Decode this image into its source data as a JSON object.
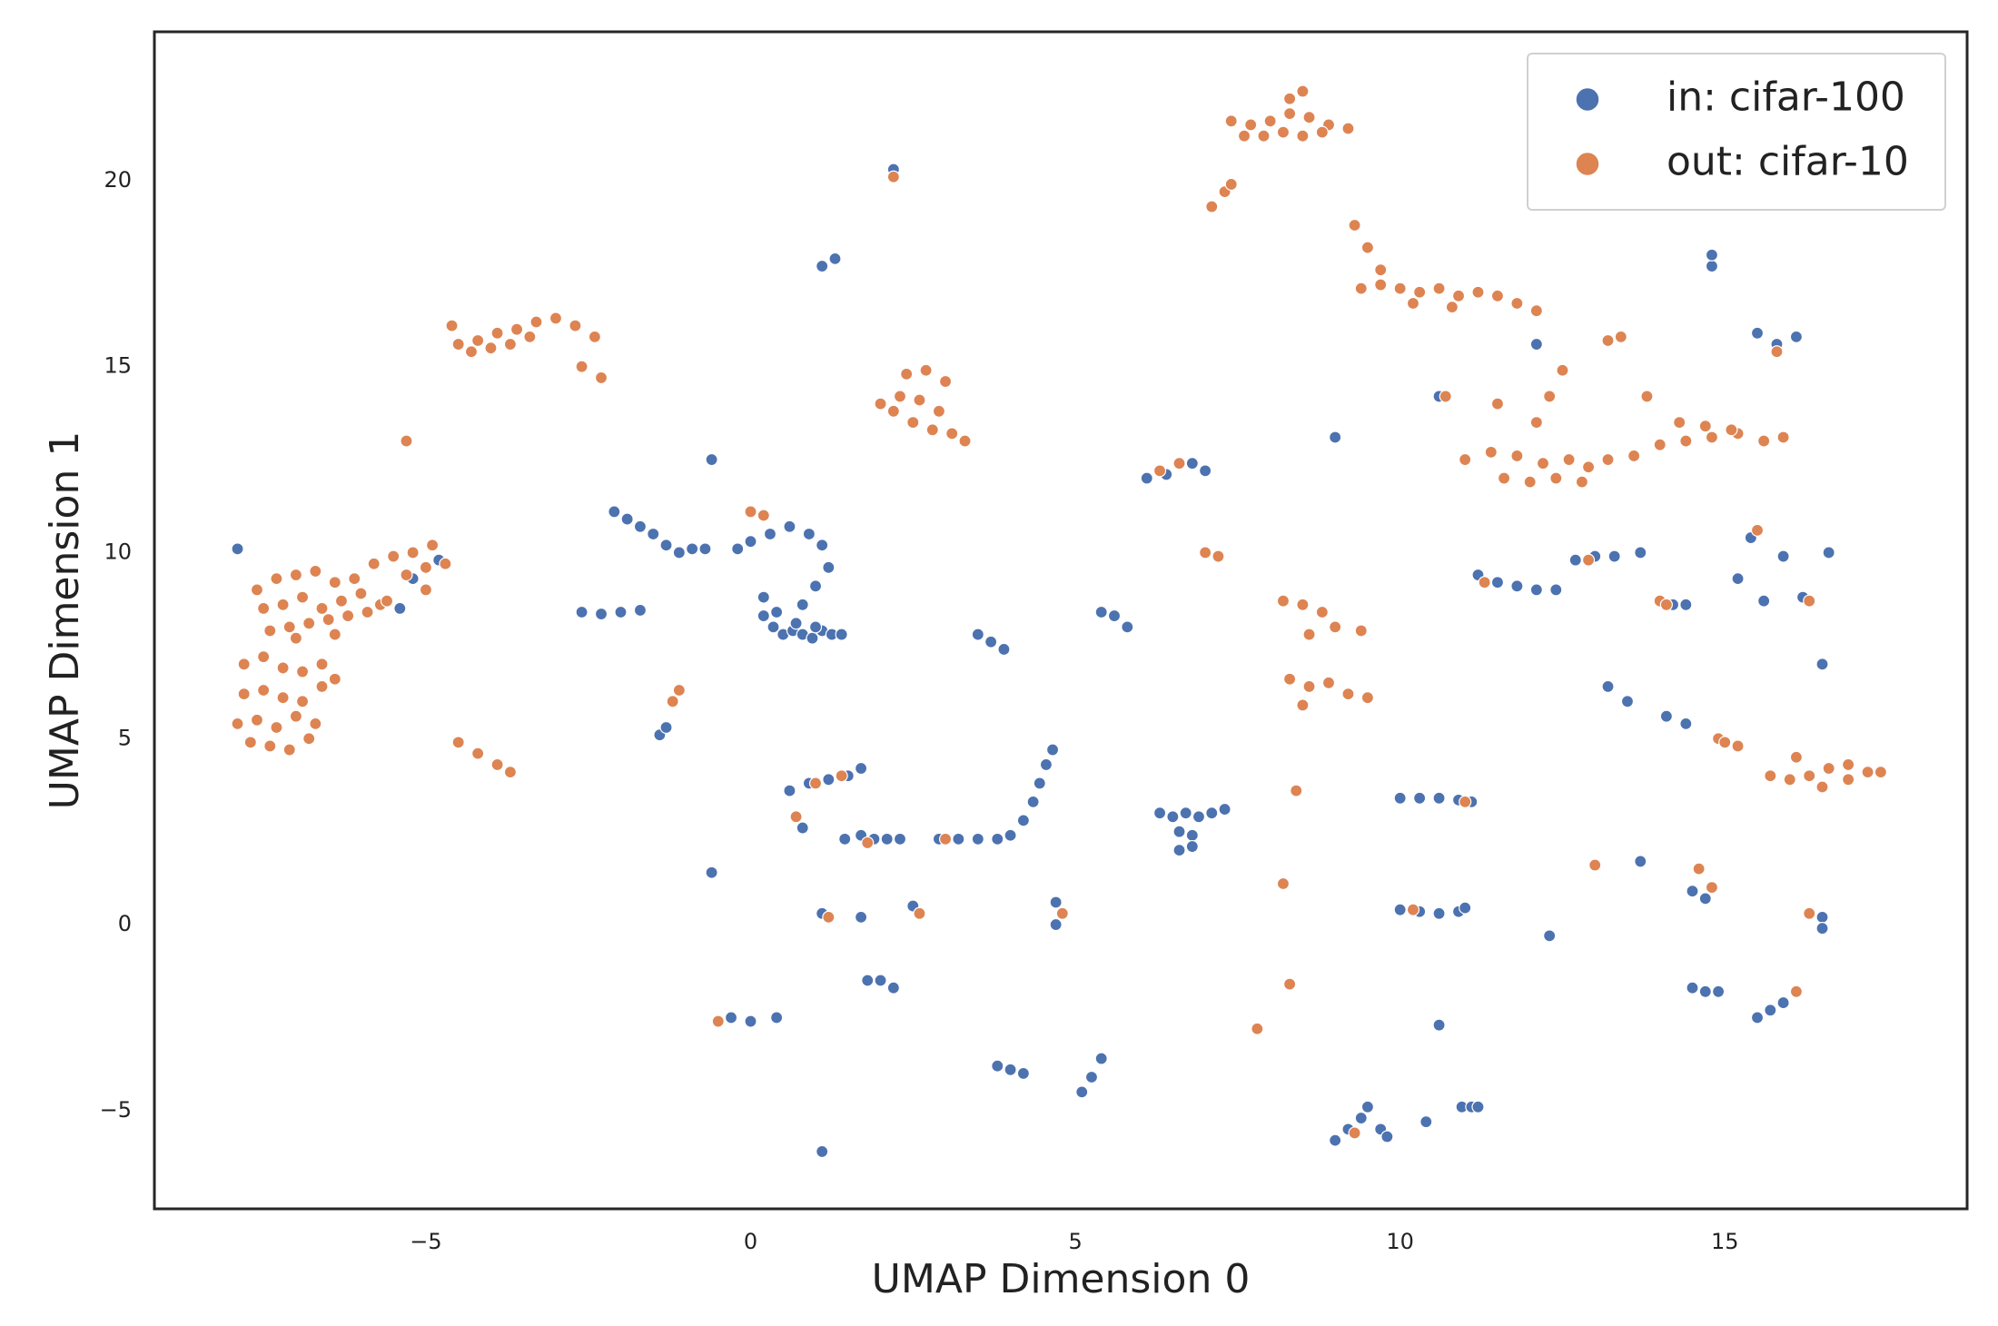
{
  "chart_data": {
    "type": "scatter",
    "xlabel": "UMAP Dimension 0",
    "ylabel": "UMAP Dimension 1",
    "xlim": [
      -9.18,
      18.73
    ],
    "ylim": [
      -7.64,
      24.0
    ],
    "xticks": [
      {
        "value": -5,
        "label": "−5"
      },
      0,
      5,
      10,
      15
    ],
    "yticks": [
      {
        "value": -5,
        "label": "−5"
      },
      0,
      5,
      10,
      15,
      20
    ],
    "grid": false,
    "legend": "upper right",
    "series": [
      {
        "name": "in: cifar-100",
        "color": "#4c72b0",
        "x": [
          0.2,
          0.35,
          0.5,
          0.65,
          0.8,
          0.95,
          1.1,
          1.25,
          1.4,
          0.4,
          0.7,
          1.0,
          0.0,
          0.3,
          0.6,
          0.9,
          1.1,
          1.2,
          1.0,
          0.8,
          -0.2,
          0.2,
          -2.1,
          -1.9,
          -1.7,
          -1.5,
          -1.3,
          -1.1,
          -0.9,
          -0.7,
          -7.9,
          -5.2,
          -5.0,
          -5.4,
          -4.8,
          -2.6,
          -2.3,
          -2.0,
          -1.7,
          -1.4,
          -1.3,
          0.6,
          0.9,
          1.2,
          1.5,
          1.7,
          0.8,
          1.45,
          1.7,
          1.9,
          2.1,
          2.3,
          2.9,
          3.2,
          3.5,
          3.8,
          4.0,
          4.2,
          4.35,
          4.45,
          4.55,
          4.65,
          6.3,
          6.5,
          6.7,
          6.9,
          7.1,
          7.3,
          6.6,
          6.8,
          6.6,
          6.8,
          3.5,
          3.7,
          3.9,
          5.4,
          5.6,
          5.8,
          6.1,
          6.4,
          6.8,
          7.0,
          1.1,
          1.3,
          2.2,
          -0.6,
          9.0,
          -0.6,
          1.1,
          1.7,
          2.5,
          4.7,
          4.7,
          1.8,
          2.0,
          2.2,
          -0.3,
          0.0,
          0.4,
          1.1,
          3.8,
          4.0,
          4.2,
          5.1,
          5.25,
          5.4,
          10.6,
          9.0,
          9.2,
          9.4,
          9.5,
          9.7,
          9.8,
          10.4,
          10.95,
          11.1,
          11.2,
          10.0,
          10.3,
          10.6,
          10.9,
          11.1,
          10.0,
          10.3,
          10.6,
          10.9,
          11.0,
          12.3,
          15.5,
          15.7,
          15.9,
          14.5,
          14.7,
          14.9,
          16.5,
          16.5,
          14.5,
          14.7,
          13.7,
          13.2,
          13.5,
          14.1,
          14.4,
          16.5,
          11.2,
          11.5,
          11.8,
          12.1,
          12.4,
          12.7,
          13.0,
          13.3,
          13.7,
          14.2,
          14.4,
          15.2,
          15.4,
          15.6,
          15.9,
          16.2,
          15.5,
          15.8,
          16.1,
          14.8,
          14.8,
          12.1,
          10.6,
          16.6
        ],
        "values": [
          8.3,
          8.0,
          7.8,
          7.9,
          7.8,
          7.7,
          7.9,
          7.8,
          7.8,
          8.4,
          8.1,
          8.0,
          10.3,
          10.5,
          10.7,
          10.5,
          10.2,
          9.6,
          9.1,
          8.6,
          10.1,
          8.8,
          11.1,
          10.9,
          10.7,
          10.5,
          10.2,
          10.0,
          10.1,
          10.1,
          10.1,
          9.3,
          9.0,
          8.5,
          9.8,
          8.4,
          8.35,
          8.4,
          8.45,
          5.1,
          5.3,
          3.6,
          3.8,
          3.9,
          4.0,
          4.2,
          2.6,
          2.3,
          2.4,
          2.3,
          2.3,
          2.3,
          2.3,
          2.3,
          2.3,
          2.3,
          2.4,
          2.8,
          3.3,
          3.8,
          4.3,
          4.7,
          3.0,
          2.9,
          3.0,
          2.9,
          3.0,
          3.1,
          2.5,
          2.4,
          2.0,
          2.1,
          7.8,
          7.6,
          7.4,
          8.4,
          8.3,
          8.0,
          12.0,
          12.1,
          12.4,
          12.2,
          17.7,
          17.9,
          20.3,
          12.5,
          13.1,
          1.4,
          0.3,
          0.2,
          0.5,
          0.6,
          0.0,
          -1.5,
          -1.5,
          -1.7,
          -2.5,
          -2.6,
          -2.5,
          -6.1,
          -3.8,
          -3.9,
          -4.0,
          -4.5,
          -4.1,
          -3.6,
          -2.7,
          -5.8,
          -5.5,
          -5.2,
          -4.9,
          -5.5,
          -5.7,
          -5.3,
          -4.9,
          -4.9,
          -4.9,
          3.4,
          3.4,
          3.4,
          3.35,
          3.3,
          0.4,
          0.35,
          0.3,
          0.35,
          0.45,
          -0.3,
          -2.5,
          -2.3,
          -2.1,
          -1.7,
          -1.8,
          -1.8,
          0.2,
          -0.1,
          0.9,
          0.7,
          1.7,
          6.4,
          6.0,
          5.6,
          5.4,
          7.0,
          9.4,
          9.2,
          9.1,
          9.0,
          9.0,
          9.8,
          9.9,
          9.9,
          10.0,
          8.6,
          8.6,
          9.3,
          10.4,
          8.7,
          9.9,
          8.8,
          15.9,
          15.6,
          15.8,
          17.7,
          18.0,
          15.6,
          14.2,
          10.0
        ]
      },
      {
        "name": "out: cifar-10",
        "color": "#dd8452",
        "x": [
          -7.6,
          -7.3,
          -7.0,
          -6.7,
          -6.4,
          -6.1,
          -5.8,
          -5.5,
          -5.2,
          -4.9,
          -7.5,
          -7.2,
          -6.9,
          -6.6,
          -6.3,
          -6.0,
          -5.7,
          -5.3,
          -5.0,
          -4.7,
          -7.4,
          -7.1,
          -6.8,
          -6.5,
          -6.2,
          -5.9,
          -5.6,
          -7.0,
          -6.4,
          -5.0,
          -7.8,
          -7.5,
          -7.2,
          -6.9,
          -6.6,
          -7.8,
          -7.5,
          -7.2,
          -6.9,
          -6.6,
          -7.9,
          -7.6,
          -7.3,
          -7.0,
          -6.7,
          -7.7,
          -7.4,
          -7.1,
          -6.8,
          -6.4,
          -4.5,
          -4.2,
          -3.9,
          -3.6,
          -3.3,
          -3.0,
          -2.7,
          -2.4,
          -4.3,
          -4.0,
          -3.7,
          -3.4,
          -2.6,
          -2.3,
          2.0,
          2.3,
          2.6,
          2.9,
          2.4,
          2.7,
          3.0,
          2.5,
          2.8,
          3.1,
          3.3,
          2.2,
          7.4,
          7.7,
          8.0,
          8.3,
          8.6,
          8.9,
          9.2,
          7.6,
          7.9,
          8.2,
          8.5,
          8.8,
          8.3,
          8.5,
          9.3,
          9.5,
          9.7,
          9.4,
          9.7,
          10.0,
          10.3,
          10.6,
          10.9,
          11.2,
          11.5,
          11.8,
          12.1,
          10.2,
          10.8,
          11.0,
          11.4,
          11.8,
          12.2,
          12.6,
          12.9,
          13.2,
          11.6,
          12.0,
          12.4,
          12.8,
          12.1,
          12.3,
          12.5,
          13.6,
          14.0,
          14.4,
          14.8,
          15.2,
          15.6,
          15.9,
          14.3,
          14.7,
          15.1,
          13.8,
          8.2,
          8.5,
          8.8,
          8.6,
          9.0,
          9.4,
          8.3,
          8.6,
          8.9,
          9.2,
          9.5,
          8.5,
          15.7,
          16.0,
          16.3,
          16.6,
          16.9,
          17.2,
          17.4,
          16.1,
          16.5,
          16.9,
          -4.5,
          -4.2,
          -3.9,
          -3.7,
          -5.3,
          -4.6,
          2.2,
          7.1,
          7.3,
          7.4,
          6.6,
          6.3,
          7.0,
          7.2,
          0.0,
          0.2,
          -1.2,
          -1.1,
          1.0,
          1.4,
          0.7,
          1.8,
          3.0,
          2.6,
          1.2,
          4.8,
          -0.5,
          8.3,
          7.8,
          8.2,
          8.4,
          9.3,
          10.2,
          11.0,
          13.0,
          14.6,
          14.8,
          16.3,
          16.1,
          14.9,
          15.0,
          15.2,
          11.3,
          12.9,
          14.0,
          14.1,
          15.5,
          16.3,
          13.4,
          13.2,
          15.8,
          10.7,
          11.5
        ],
        "values": [
          9.0,
          9.3,
          9.4,
          9.5,
          9.2,
          9.3,
          9.7,
          9.9,
          10.0,
          10.2,
          8.5,
          8.6,
          8.8,
          8.5,
          8.7,
          8.9,
          8.6,
          9.4,
          9.6,
          9.7,
          7.9,
          8.0,
          8.1,
          8.2,
          8.3,
          8.4,
          8.7,
          7.7,
          7.8,
          9.0,
          7.0,
          7.2,
          6.9,
          6.8,
          7.0,
          6.2,
          6.3,
          6.1,
          6.0,
          6.4,
          5.4,
          5.5,
          5.3,
          5.6,
          5.4,
          4.9,
          4.8,
          4.7,
          5.0,
          6.6,
          15.6,
          15.7,
          15.9,
          16.0,
          16.2,
          16.3,
          16.1,
          15.8,
          15.4,
          15.5,
          15.6,
          15.8,
          15.0,
          14.7,
          14.0,
          14.2,
          14.1,
          13.8,
          14.8,
          14.9,
          14.6,
          13.5,
          13.3,
          13.2,
          13.0,
          13.8,
          21.6,
          21.5,
          21.6,
          21.8,
          21.7,
          21.5,
          21.4,
          21.2,
          21.2,
          21.3,
          21.2,
          21.3,
          22.2,
          22.4,
          18.8,
          18.2,
          17.6,
          17.1,
          17.2,
          17.1,
          17.0,
          17.1,
          16.9,
          17.0,
          16.9,
          16.7,
          16.5,
          16.7,
          16.6,
          12.5,
          12.7,
          12.6,
          12.4,
          12.5,
          12.3,
          12.5,
          12.0,
          11.9,
          12.0,
          11.9,
          13.5,
          14.2,
          14.9,
          12.6,
          12.9,
          13.0,
          13.1,
          13.2,
          13.0,
          13.1,
          13.5,
          13.4,
          13.3,
          14.2,
          8.7,
          8.6,
          8.4,
          7.8,
          8.0,
          7.9,
          6.6,
          6.4,
          6.5,
          6.2,
          6.1,
          5.9,
          4.0,
          3.9,
          4.0,
          4.2,
          4.3,
          4.1,
          4.1,
          4.5,
          3.7,
          3.9,
          4.9,
          4.6,
          4.3,
          4.1,
          13.0,
          16.1,
          20.1,
          19.3,
          19.7,
          19.9,
          12.4,
          12.2,
          10.0,
          9.9,
          11.1,
          11.0,
          6.0,
          6.3,
          3.8,
          4.0,
          2.9,
          2.2,
          2.3,
          0.3,
          0.2,
          0.3,
          -2.6,
          -1.6,
          -2.8,
          1.1,
          3.6,
          -5.6,
          0.4,
          3.3,
          1.6,
          1.5,
          1.0,
          0.3,
          -1.8,
          5.0,
          4.9,
          4.8,
          9.2,
          9.8,
          8.7,
          8.6,
          10.6,
          8.7,
          15.8,
          15.7,
          15.4,
          14.2,
          14.0
        ]
      }
    ]
  }
}
